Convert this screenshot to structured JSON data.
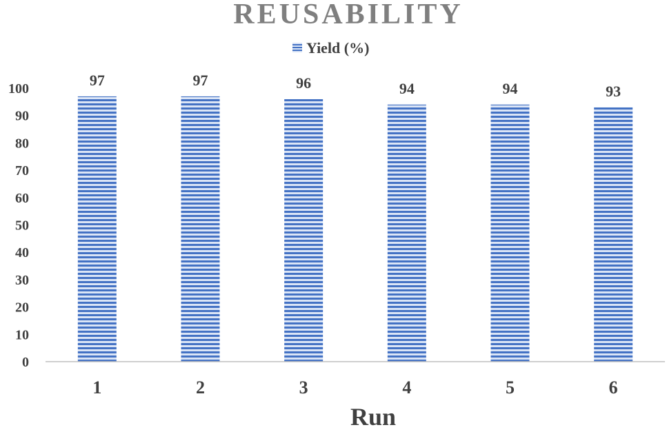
{
  "chart_data": {
    "type": "bar",
    "title": "REUSABILITY",
    "xlabel": "Run",
    "ylabel": "",
    "categories": [
      "1",
      "2",
      "3",
      "4",
      "5",
      "6"
    ],
    "series": [
      {
        "name": "Yield (%)",
        "values": [
          97,
          97,
          96,
          94,
          94,
          93
        ],
        "color": "#4472c4"
      }
    ],
    "data_labels": [
      "97",
      "97",
      "96",
      "94",
      "94",
      "93"
    ],
    "ylim": [
      0,
      100
    ],
    "yticks": [
      "0",
      "10",
      "20",
      "30",
      "40",
      "50",
      "60",
      "70",
      "80",
      "90",
      "100"
    ],
    "grid": false,
    "legend_position": "top"
  },
  "colors": {
    "bar_fill": "#4472c4",
    "bar_stripe_light": "#dbe5f6",
    "title": "#7f7f7f",
    "text": "#404040",
    "axis": "#bfbfbf"
  }
}
